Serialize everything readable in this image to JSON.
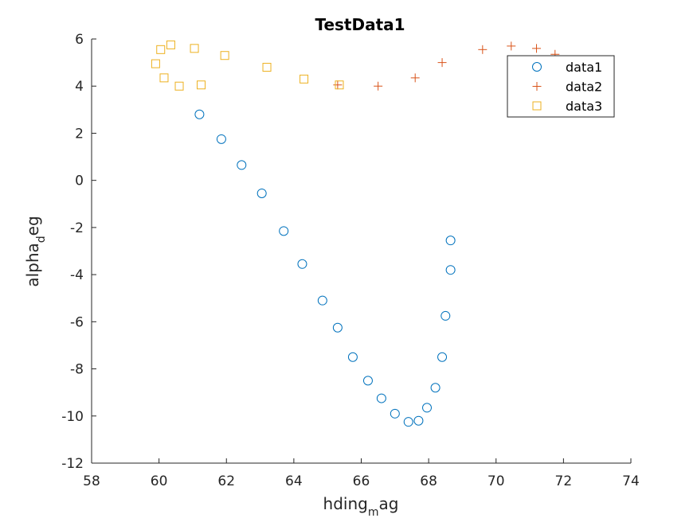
{
  "chart_data": {
    "type": "scatter",
    "title": "TestData1",
    "xlabel": {
      "base": "hding",
      "sub": "m",
      "rest": "ag"
    },
    "ylabel": {
      "base": "alpha",
      "sub": "d",
      "rest": "eg"
    },
    "xlim": [
      58,
      74
    ],
    "ylim": [
      -12,
      6
    ],
    "xticks": [
      58,
      60,
      62,
      64,
      66,
      68,
      70,
      72,
      74
    ],
    "yticks": [
      -12,
      -10,
      -8,
      -6,
      -4,
      -2,
      0,
      2,
      4,
      6
    ],
    "grid": false,
    "legend": "top-right",
    "series": [
      {
        "name": "data1",
        "marker": "circle",
        "color": "#0072BD",
        "points": [
          [
            61.2,
            2.8
          ],
          [
            61.85,
            1.75
          ],
          [
            62.45,
            0.65
          ],
          [
            63.05,
            -0.55
          ],
          [
            63.7,
            -2.15
          ],
          [
            64.25,
            -3.55
          ],
          [
            64.85,
            -5.1
          ],
          [
            65.3,
            -6.25
          ],
          [
            65.75,
            -7.5
          ],
          [
            66.2,
            -8.5
          ],
          [
            66.6,
            -9.25
          ],
          [
            67.0,
            -9.9
          ],
          [
            67.4,
            -10.25
          ],
          [
            67.7,
            -10.2
          ],
          [
            67.95,
            -9.65
          ],
          [
            68.2,
            -8.8
          ],
          [
            68.4,
            -7.5
          ],
          [
            68.5,
            -5.75
          ],
          [
            68.65,
            -3.8
          ],
          [
            68.65,
            -2.55
          ]
        ]
      },
      {
        "name": "data2",
        "marker": "plus",
        "color": "#D95319",
        "points": [
          [
            65.3,
            4.05
          ],
          [
            66.5,
            4.0
          ],
          [
            67.6,
            4.35
          ],
          [
            68.4,
            5.0
          ],
          [
            69.6,
            5.55
          ],
          [
            70.45,
            5.7
          ],
          [
            71.2,
            5.6
          ],
          [
            71.75,
            5.35
          ]
        ]
      },
      {
        "name": "data3",
        "marker": "square",
        "color": "#EDB120",
        "points": [
          [
            59.9,
            4.95
          ],
          [
            60.05,
            5.55
          ],
          [
            60.15,
            4.35
          ],
          [
            60.35,
            5.75
          ],
          [
            60.6,
            4.0
          ],
          [
            61.05,
            5.6
          ],
          [
            61.25,
            4.05
          ],
          [
            61.95,
            5.3
          ],
          [
            63.2,
            4.8
          ],
          [
            64.3,
            4.3
          ],
          [
            65.35,
            4.05
          ]
        ]
      }
    ]
  }
}
